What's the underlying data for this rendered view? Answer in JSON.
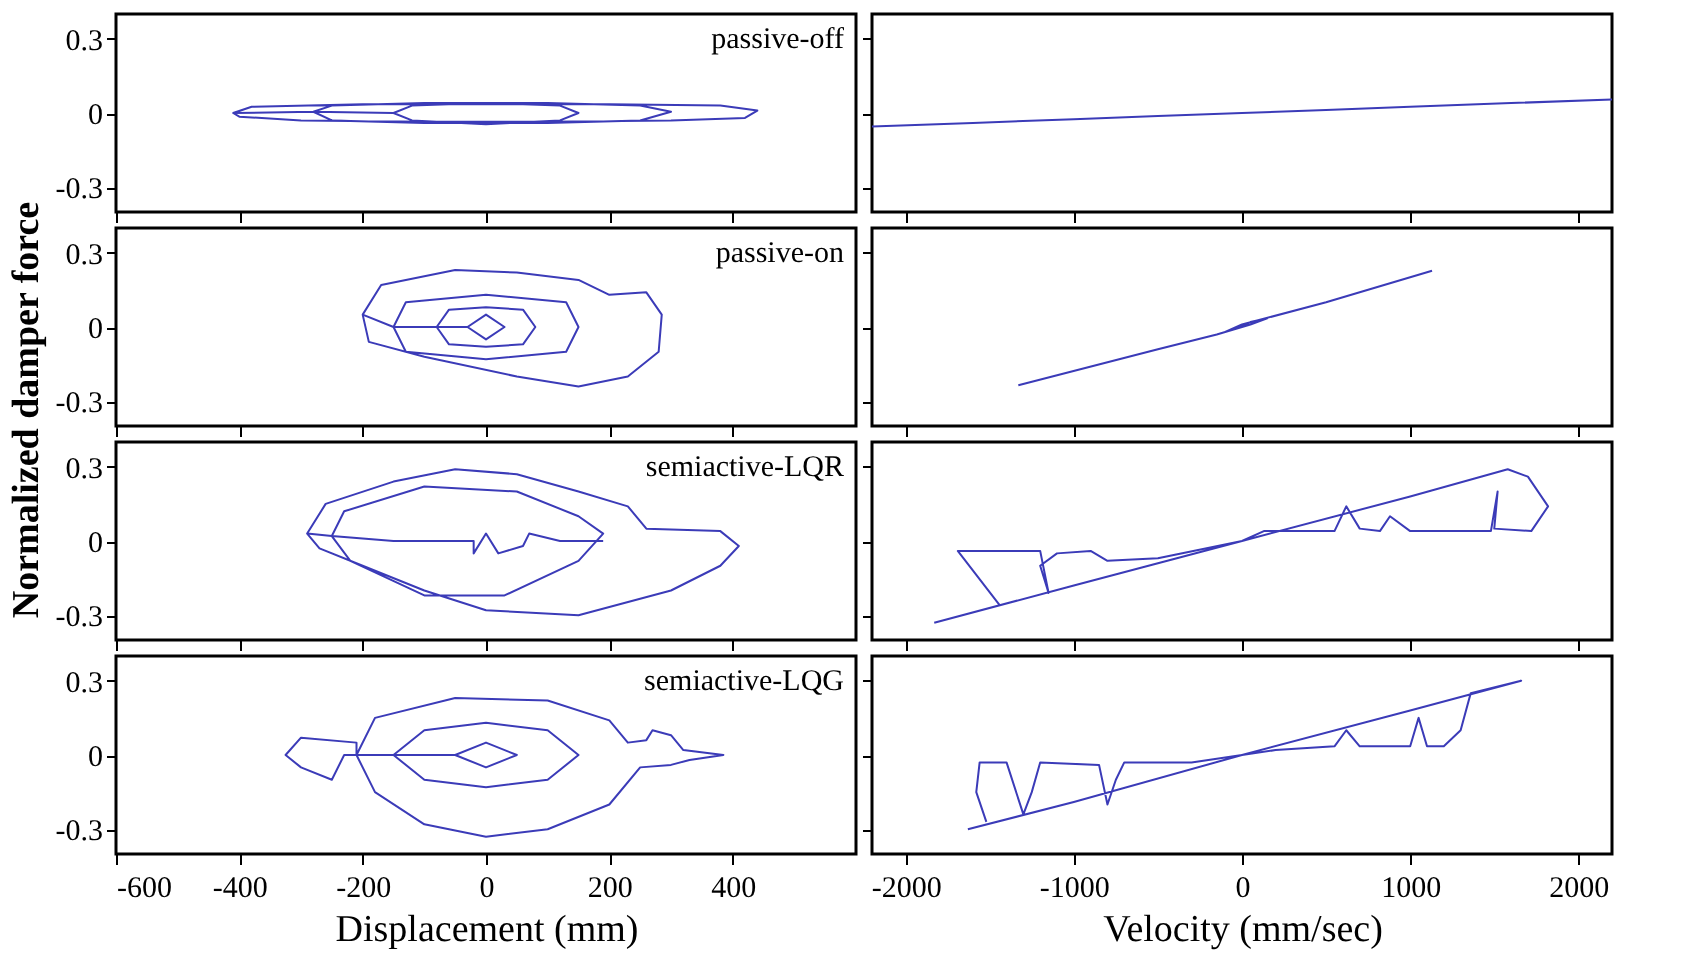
{
  "chart_data": [
    {
      "type": "line",
      "title": "passive-off",
      "ylabel": "Normalized damper force",
      "xlim": [
        -600,
        600
      ],
      "ylim": [
        -0.4,
        0.4
      ],
      "yticks": [
        -0.3,
        0,
        0.3
      ],
      "xticks": [
        -600,
        -400,
        -200,
        0,
        200,
        400
      ],
      "tick_labels": "y",
      "grid": false,
      "series": [
        {
          "color": "#3b3bb8",
          "x": [
            -410,
            -380,
            -200,
            0,
            200,
            380,
            440,
            420,
            300,
            100,
            -100,
            -300,
            -400,
            -410,
            -280,
            -250,
            -100,
            100,
            250,
            300,
            250,
            100,
            -100,
            -250,
            -280,
            -150,
            -120,
            0,
            120,
            150,
            120,
            0,
            -120,
            -150
          ],
          "values": [
            0,
            0.025,
            0.035,
            0.035,
            0.035,
            0.03,
            0.01,
            -0.02,
            -0.03,
            -0.035,
            -0.035,
            -0.03,
            -0.015,
            0,
            0.005,
            0.03,
            0.04,
            0.04,
            0.03,
            0.005,
            -0.03,
            -0.04,
            -0.04,
            -0.03,
            0.005,
            0,
            0.03,
            0.04,
            0.03,
            0,
            -0.03,
            -0.045,
            -0.03,
            0
          ]
        }
      ]
    },
    {
      "type": "line",
      "xlim": [
        -2200,
        2200
      ],
      "ylim": [
        -0.4,
        0.4
      ],
      "yticks": [
        -0.3,
        0,
        0.3
      ],
      "xticks": [
        -2000,
        -1000,
        0,
        1000,
        2000
      ],
      "tick_labels": false,
      "grid": false,
      "series": [
        {
          "color": "#3b3bb8",
          "x": [
            -2200,
            -1600,
            -1000,
            -500,
            0,
            500,
            1000,
            1600,
            2200
          ],
          "values": [
            -0.055,
            -0.04,
            -0.025,
            -0.012,
            0,
            0.012,
            0.025,
            0.04,
            0.055
          ]
        }
      ]
    },
    {
      "type": "line",
      "title": "passive-on",
      "xlim": [
        -600,
        600
      ],
      "ylim": [
        -0.4,
        0.4
      ],
      "yticks": [
        -0.3,
        0,
        0.3
      ],
      "xticks": [
        -600,
        -400,
        -200,
        0,
        200,
        400
      ],
      "tick_labels": "y",
      "grid": false,
      "series": [
        {
          "color": "#3b3bb8",
          "x": [
            -200,
            -170,
            -50,
            50,
            150,
            200,
            260,
            285,
            280,
            230,
            150,
            50,
            -100,
            -190,
            -200,
            -150,
            -130,
            0,
            130,
            150,
            130,
            0,
            -130,
            -150,
            -80,
            -60,
            0,
            60,
            80,
            60,
            0,
            -60,
            -80,
            -30,
            0,
            30,
            0,
            -30
          ],
          "values": [
            0.05,
            0.17,
            0.23,
            0.22,
            0.19,
            0.13,
            0.14,
            0.05,
            -0.1,
            -0.2,
            -0.24,
            -0.2,
            -0.12,
            -0.06,
            0.05,
            0,
            0.1,
            0.13,
            0.1,
            0,
            -0.1,
            -0.13,
            -0.1,
            0,
            0,
            0.07,
            0.08,
            0.07,
            0,
            -0.07,
            -0.08,
            -0.07,
            0,
            0,
            0.05,
            0,
            -0.05,
            0
          ]
        }
      ]
    },
    {
      "type": "line",
      "xlim": [
        -2200,
        2200
      ],
      "ylim": [
        -0.4,
        0.4
      ],
      "yticks": [
        -0.3,
        0,
        0.3
      ],
      "xticks": [
        -2000,
        -1000,
        0,
        1000,
        2000
      ],
      "tick_labels": false,
      "grid": false,
      "series": [
        {
          "color": "#3b3bb8",
          "x": [
            -1330,
            -500,
            -150,
            -50,
            50,
            150,
            50,
            -100,
            0,
            500,
            1130
          ],
          "values": [
            -0.235,
            -0.09,
            -0.03,
            -0.01,
            0.02,
            0.035,
            0.01,
            -0.02,
            0.01,
            0.1,
            0.227
          ]
        }
      ]
    },
    {
      "type": "line",
      "title": "semiactive-LQR",
      "xlim": [
        -600,
        600
      ],
      "ylim": [
        -0.4,
        0.4
      ],
      "yticks": [
        -0.3,
        0,
        0.3
      ],
      "xticks": [
        -600,
        -400,
        -200,
        0,
        200,
        400
      ],
      "tick_labels": "y",
      "grid": false,
      "series": [
        {
          "color": "#3b3bb8",
          "x": [
            -290,
            -260,
            -150,
            -50,
            50,
            150,
            230,
            260,
            380,
            410,
            380,
            300,
            150,
            0,
            -100,
            -200,
            -270,
            -290,
            -250,
            -230,
            -100,
            50,
            150,
            190,
            150,
            30,
            -100,
            -220,
            -250,
            -150,
            -20,
            -20,
            0,
            20,
            60,
            70,
            120,
            190
          ],
          "values": [
            0.03,
            0.15,
            0.24,
            0.29,
            0.27,
            0.2,
            0.14,
            0.05,
            0.04,
            -0.02,
            -0.1,
            -0.2,
            -0.3,
            -0.28,
            -0.2,
            -0.1,
            -0.03,
            0.03,
            0.02,
            0.12,
            0.22,
            0.2,
            0.1,
            0.03,
            -0.08,
            -0.22,
            -0.22,
            -0.08,
            0.02,
            0,
            0,
            -0.05,
            0.03,
            -0.05,
            -0.02,
            0.03,
            0,
            0
          ]
        }
      ]
    },
    {
      "type": "line",
      "xlim": [
        -2200,
        2200
      ],
      "ylim": [
        -0.4,
        0.4
      ],
      "yticks": [
        -0.3,
        0,
        0.3
      ],
      "xticks": [
        -2000,
        -1000,
        0,
        1000,
        2000
      ],
      "tick_labels": false,
      "grid": false,
      "series": [
        {
          "color": "#3b3bb8",
          "x": [
            -1830,
            -1000,
            0,
            1000,
            1580,
            1700,
            1820,
            1720,
            1500,
            1520,
            1480,
            1000,
            880,
            820,
            700,
            620,
            550,
            130,
            0,
            -500,
            -800,
            -900,
            -1100,
            -1200,
            -1150,
            -1200,
            -1690,
            -1440
          ],
          "values": [
            -0.33,
            -0.18,
            0,
            0.18,
            0.29,
            0.26,
            0.14,
            0.04,
            0.05,
            0.2,
            0.04,
            0.04,
            0.1,
            0.04,
            0.05,
            0.14,
            0.04,
            0.04,
            0,
            -0.07,
            -0.08,
            -0.04,
            -0.05,
            -0.1,
            -0.21,
            -0.04,
            -0.04,
            -0.26
          ]
        }
      ]
    },
    {
      "type": "line",
      "title": "semiactive-LQG",
      "xlabel": "Displacement (mm)",
      "xlim": [
        -600,
        600
      ],
      "ylim": [
        -0.4,
        0.4
      ],
      "yticks": [
        -0.3,
        0,
        0.3
      ],
      "xticks": [
        -600,
        -400,
        -200,
        0,
        200,
        400
      ],
      "grid": false,
      "series": [
        {
          "color": "#3b3bb8",
          "x": [
            -210,
            -180,
            -50,
            100,
            200,
            230,
            260,
            270,
            300,
            320,
            385,
            330,
            300,
            250,
            200,
            100,
            0,
            -100,
            -180,
            -210,
            -210,
            -300,
            -325,
            -300,
            -250,
            -230,
            -150,
            -100,
            0,
            100,
            150,
            100,
            0,
            -100,
            -150,
            -50,
            0,
            50,
            0,
            -50
          ],
          "values": [
            0,
            0.15,
            0.23,
            0.22,
            0.14,
            0.05,
            0.06,
            0.1,
            0.08,
            0.02,
            0,
            -0.02,
            -0.04,
            -0.05,
            -0.2,
            -0.3,
            -0.33,
            -0.28,
            -0.15,
            0,
            0.05,
            0.07,
            0,
            -0.05,
            -0.1,
            0,
            0,
            0.1,
            0.13,
            0.1,
            0,
            -0.1,
            -0.13,
            -0.1,
            0,
            0,
            0.05,
            0,
            -0.05,
            0
          ]
        }
      ]
    },
    {
      "type": "line",
      "xlabel": "Velocity (mm/sec)",
      "xlim": [
        -2200,
        2200
      ],
      "ylim": [
        -0.4,
        0.4
      ],
      "yticks": [
        -0.3,
        0,
        0.3
      ],
      "xticks": [
        -2000,
        -1000,
        0,
        1000,
        2000
      ],
      "tick_labels": "x",
      "grid": false,
      "series": [
        {
          "color": "#3b3bb8",
          "x": [
            -1630,
            -1000,
            0,
            1000,
            1660,
            1360,
            1300,
            1200,
            1100,
            1050,
            1000,
            700,
            620,
            550,
            200,
            0,
            -300,
            -700,
            -750,
            -800,
            -850,
            -1200,
            -1250,
            -1300,
            -1400,
            -1560,
            -1580,
            -1520
          ],
          "values": [
            -0.3,
            -0.19,
            0,
            0.18,
            0.3,
            0.25,
            0.1,
            0.035,
            0.035,
            0.15,
            0.035,
            0.035,
            0.1,
            0.035,
            0.02,
            0,
            -0.03,
            -0.03,
            -0.1,
            -0.2,
            -0.04,
            -0.03,
            -0.15,
            -0.24,
            -0.03,
            -0.03,
            -0.15,
            -0.27
          ]
        }
      ]
    }
  ]
}
